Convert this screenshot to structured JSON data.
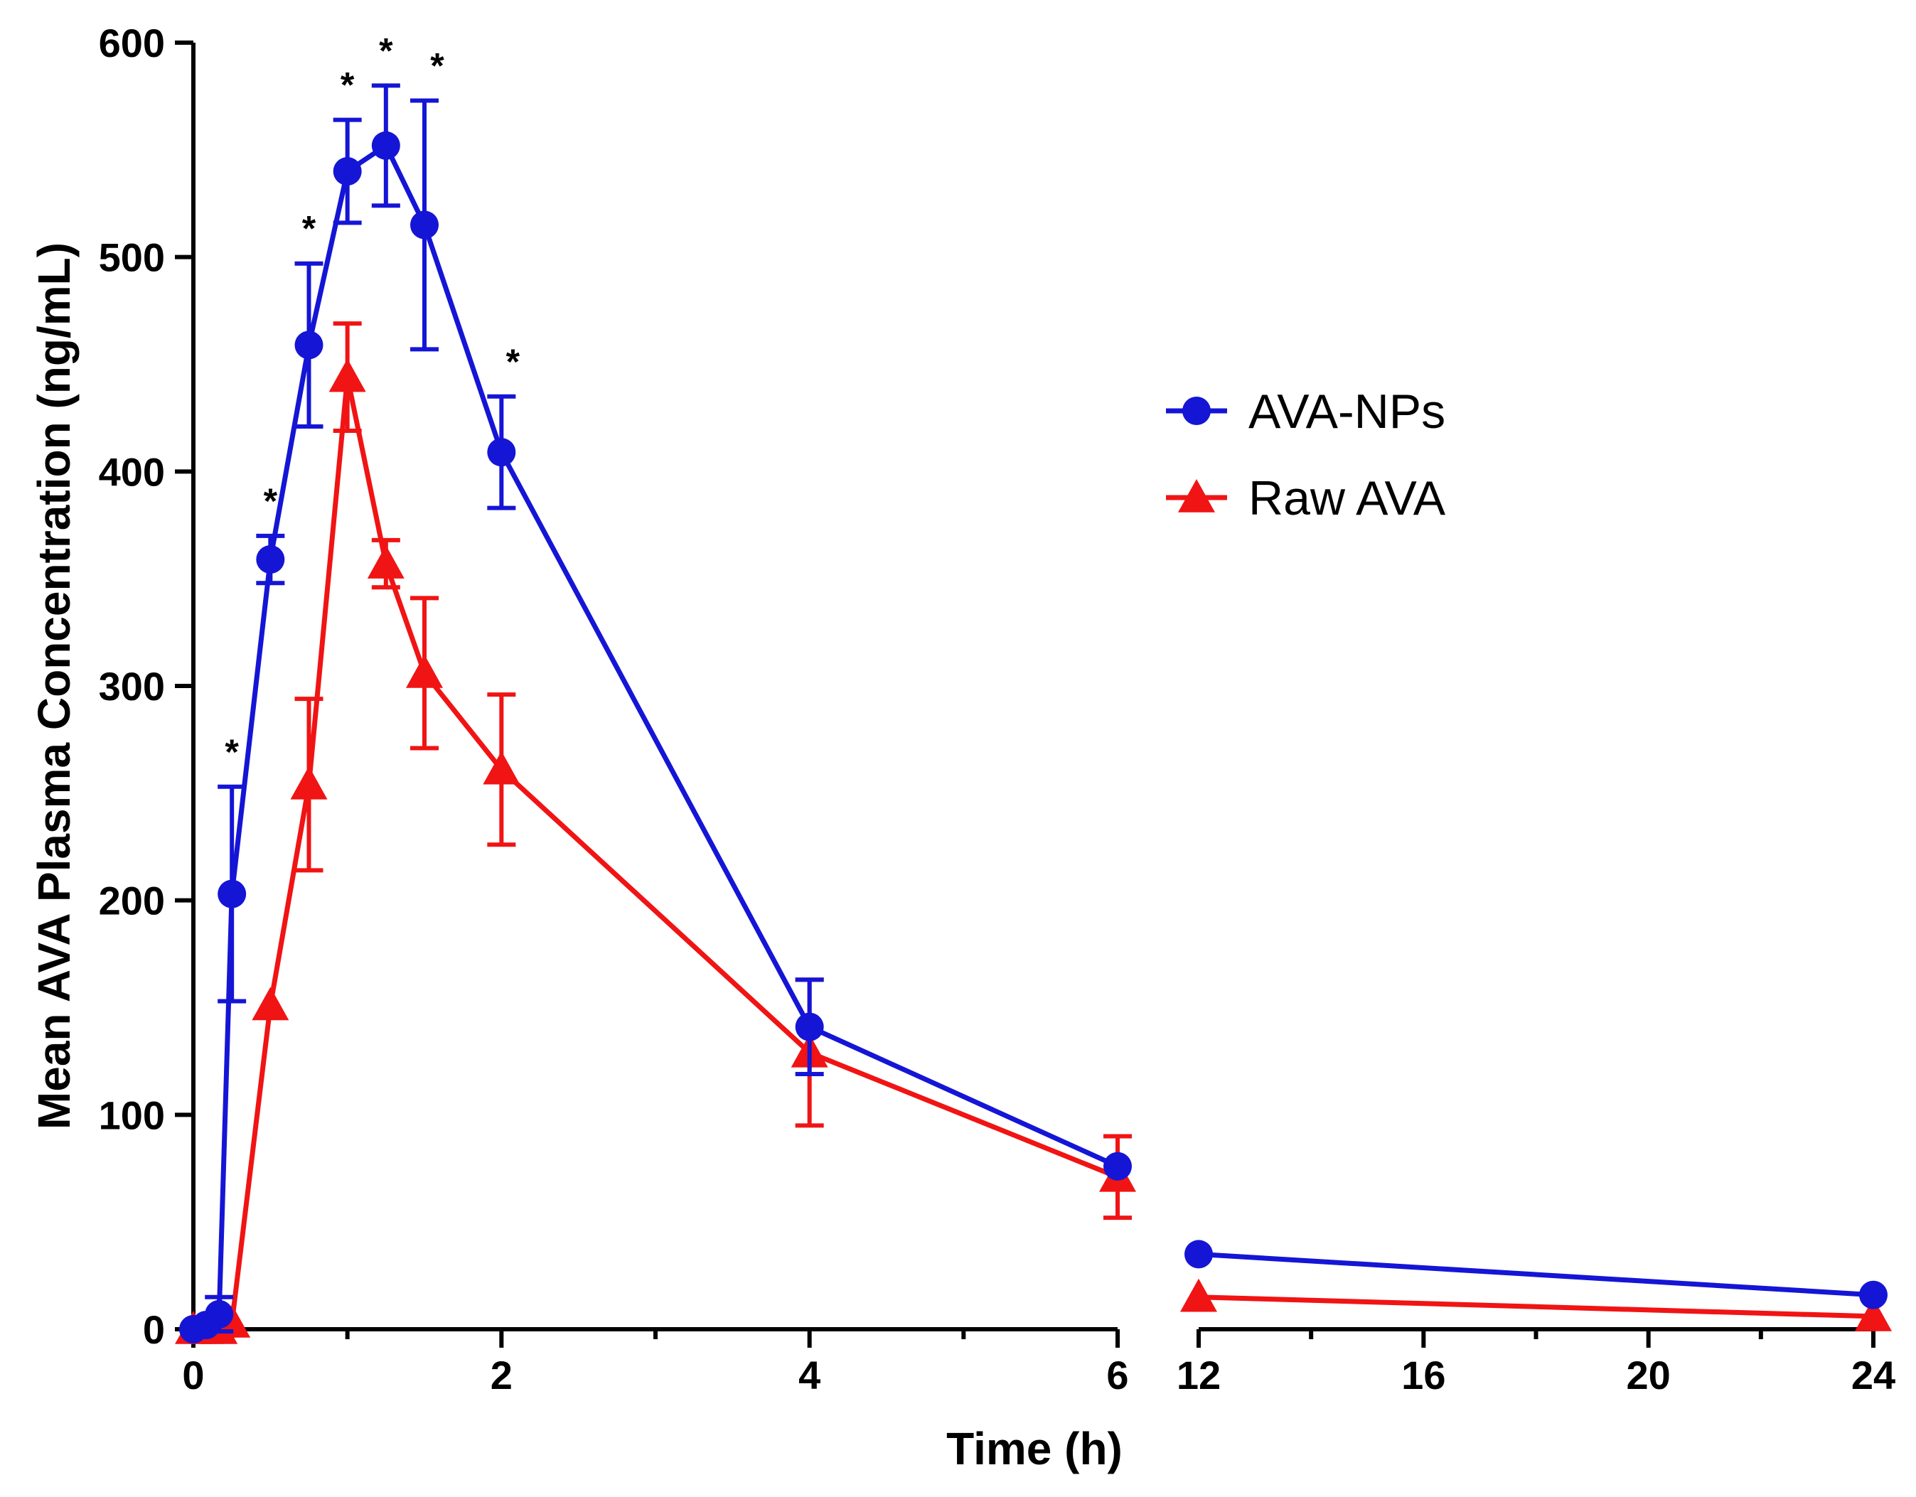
{
  "chart_data": {
    "type": "line",
    "title": "",
    "xlabel": "Time (h)",
    "ylabel": "Mean AVA Plasma Concentration (ng/mL)",
    "ylim": [
      0,
      600
    ],
    "yticks": [
      "0",
      "100",
      "200",
      "300",
      "400",
      "500",
      "600"
    ],
    "xlim_segments": [
      [
        0,
        6
      ],
      [
        12,
        24
      ]
    ],
    "xticks_segment1": [
      "0",
      "2",
      "4",
      "6"
    ],
    "xticks_segment2": [
      "12",
      "16",
      "20",
      "24"
    ],
    "legend": [
      "AVA-NPs",
      "Raw AVA"
    ],
    "legend_position": "upper-right (middle)",
    "significance_marker": "*",
    "series": [
      {
        "name": "AVA-NPs",
        "color": "#1515d6",
        "marker": "circle",
        "x": [
          0,
          0.083,
          0.167,
          0.25,
          0.5,
          0.75,
          1.0,
          1.25,
          1.5,
          2.0,
          4.0,
          6.0,
          12.0,
          24.0
        ],
        "y": [
          0,
          2,
          7,
          203,
          359,
          459,
          540,
          552,
          515,
          409,
          141,
          76,
          35,
          16
        ],
        "err": [
          0,
          2,
          8,
          50,
          11,
          38,
          24,
          28,
          58,
          26,
          22,
          0,
          0,
          0
        ],
        "significant": [
          false,
          false,
          false,
          true,
          true,
          true,
          true,
          true,
          true,
          true,
          false,
          false,
          false,
          false
        ]
      },
      {
        "name": "Raw AVA",
        "color": "#f01414",
        "marker": "triangle",
        "x": [
          0,
          0.083,
          0.167,
          0.25,
          0.5,
          0.75,
          1.0,
          1.25,
          1.5,
          2.0,
          4.0,
          6.0,
          12.0,
          24.0
        ],
        "y": [
          0,
          0,
          0,
          3,
          151,
          254,
          444,
          357,
          306,
          261,
          129,
          71,
          15,
          6
        ],
        "err": [
          0,
          0,
          0,
          0,
          0,
          40,
          25,
          11,
          35,
          35,
          34,
          19,
          0,
          0
        ]
      }
    ]
  }
}
